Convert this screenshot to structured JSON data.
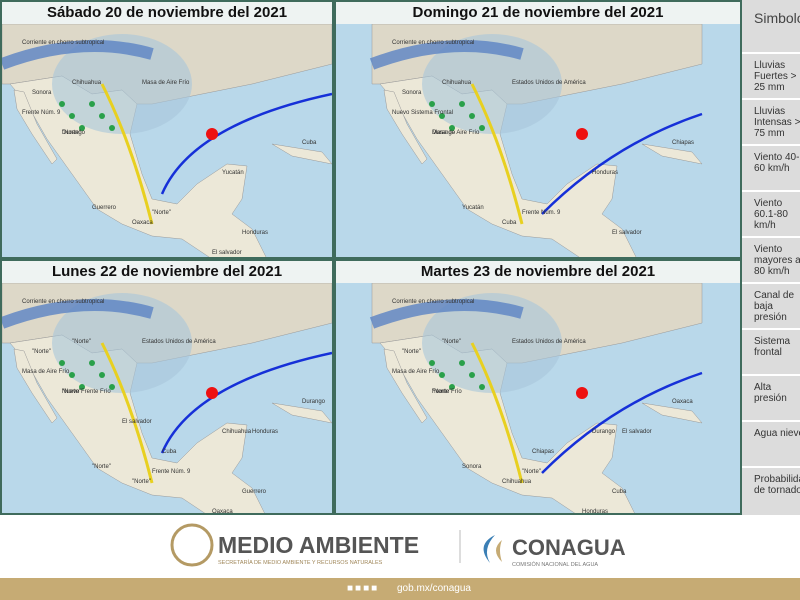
{
  "panels": [
    {
      "title": "Sábado 20 de noviembre del 2021",
      "labels": [
        "Corriente en chorro subtropical",
        "Masa de Aire Frío",
        "Frente Núm. 9",
        "\"Norte\"",
        "\"Norte\"",
        "Sonora",
        "Chihuahua",
        "Durango",
        "Guerrero",
        "Oaxaca",
        "Yucatán",
        "Cuba",
        "Honduras",
        "El salvador"
      ]
    },
    {
      "title": "Domingo 21 de noviembre del 2021",
      "labels": [
        "Corriente en chorro subtropical",
        "Estados Unidos de América",
        "Nuevo Sistema Frontal",
        "Masa de Aire Frío",
        "Frente Núm. 9",
        "Sonora",
        "Chihuahua",
        "Durango",
        "Yucatán",
        "Cuba",
        "Honduras",
        "Chiapas",
        "El salvador"
      ]
    },
    {
      "title": "Lunes 22 de noviembre del 2021",
      "labels": [
        "Corriente en chorro subtropical",
        "Estados Unidos de América",
        "Masa de Aire Frío",
        "Nuevo Frente Frío",
        "Frente Núm. 9",
        "\"Norte\"",
        "\"Norte\"",
        "\"Norte\"",
        "\"Norte\"",
        "\"Norte\"",
        "Chihuahua",
        "Durango",
        "Guerrero",
        "Oaxaca",
        "Cuba",
        "Honduras",
        "El salvador"
      ]
    },
    {
      "title": "Martes 23 de noviembre del 2021",
      "labels": [
        "Corriente en chorro subtropical",
        "Estados Unidos de América",
        "Masa de Aire Frío",
        "Frente Frío",
        "\"Norte\"",
        "\"Norte\"",
        "\"Norte\"",
        "\"Norte\"",
        "Sonora",
        "Chihuahua",
        "Durango",
        "Oaxaca",
        "Cuba",
        "Honduras",
        "Chiapas",
        "El salvador"
      ]
    }
  ],
  "legend": {
    "title": "Simbología por",
    "items": [
      "Lluvias Fuertes > 25 mm",
      "Lluvias Intensas > 75 mm",
      "Viento 40-60 km/h",
      "Viento 60.1-80 km/h",
      "Viento mayores a 80 km/h",
      "Canal de baja presión",
      "Sistema frontal",
      "Alta presión",
      "Agua nieve",
      "Probabilidad de tornado"
    ]
  },
  "footer": {
    "semarnat": "MEDIO AMBIENTE",
    "semarnat_sub": "SECRETARÍA DE MEDIO AMBIENTE Y RECURSOS NATURALES",
    "conagua": "CONAGUA",
    "conagua_sub": "COMISIÓN NACIONAL DEL AGUA",
    "url": "gob.mx/conagua"
  }
}
